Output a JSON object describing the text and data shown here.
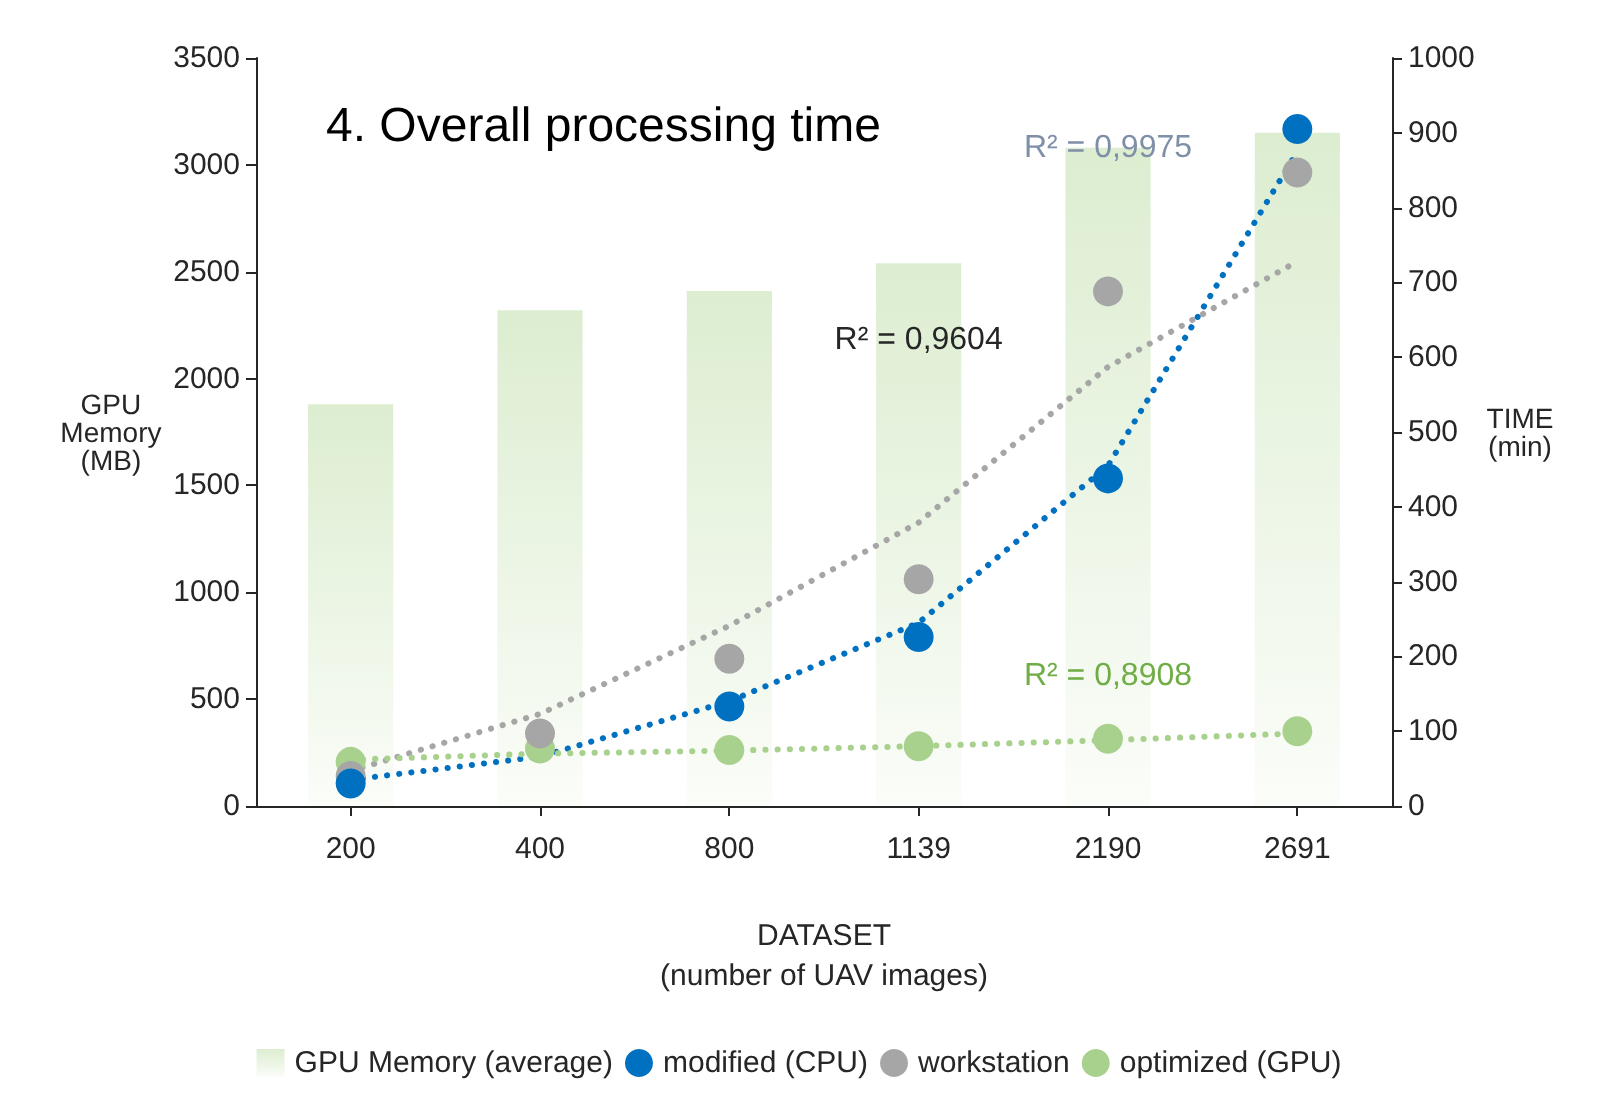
{
  "chart_data": {
    "type": "bar",
    "title": "4. Overall processing time",
    "xlabel": "DATASET\n(number of UAV images)",
    "ylabel": "GPU\nMemory\n(MB)",
    "y2label": "TIME\n(min)",
    "categories": [
      "200",
      "400",
      "800",
      "1139",
      "2190",
      "2691"
    ],
    "series": [
      {
        "name": "GPU Memory (average)",
        "color": "#dcedd0",
        "values": [
          1880,
          2320,
          2410,
          2540,
          3080,
          3150
        ]
      },
      {
        "type": "line",
        "axis": "y2",
        "color": "#0070c0",
        "line_style": "dotted",
        "marker": "none",
        "values": [
          35,
          66,
          140,
          245,
          455,
          875
        ]
      },
      {
        "type": "line",
        "axis": "y2",
        "color": "#a6a6a6",
        "line_style": "dotted",
        "marker": "none",
        "values": [
          47,
          123,
          241,
          379,
          587,
          728
        ]
      },
      {
        "type": "line",
        "axis": "y2",
        "color": "#a9d18e",
        "line_style": "dotted",
        "marker": "none",
        "values": [
          62,
          70,
          74,
          80,
          88,
          97
        ]
      },
      {
        "name": "modified (CPU)",
        "type": "scatter",
        "axis": "y2",
        "color": "#0070c0",
        "marker": "circle",
        "values": [
          30,
          null,
          133,
          226,
          438,
          905
        ]
      },
      {
        "name": "workstation",
        "type": "scatter",
        "axis": "y2",
        "color": "#a6a6a6",
        "marker": "circle",
        "values": [
          40,
          97,
          197,
          303,
          688,
          847
        ]
      },
      {
        "name": "optimized (GPU)",
        "type": "scatter",
        "axis": "y2",
        "color": "#a9d18e",
        "marker": "circle",
        "values": [
          59,
          77,
          75,
          80,
          90,
          100
        ]
      }
    ],
    "annotations": [
      "R² = 0,9975",
      "R² = 0,9604",
      "R² = 0,8908"
    ],
    "ylim": [
      0,
      3500
    ],
    "yticks": [
      0,
      500,
      1000,
      1500,
      2000,
      2500,
      3000,
      3500
    ],
    "y2lim": [
      0,
      1000
    ],
    "y2ticks": [
      0,
      100,
      200,
      300,
      400,
      500,
      600,
      700,
      800,
      900,
      1000
    ],
    "grid": false,
    "legend": "bottom"
  }
}
